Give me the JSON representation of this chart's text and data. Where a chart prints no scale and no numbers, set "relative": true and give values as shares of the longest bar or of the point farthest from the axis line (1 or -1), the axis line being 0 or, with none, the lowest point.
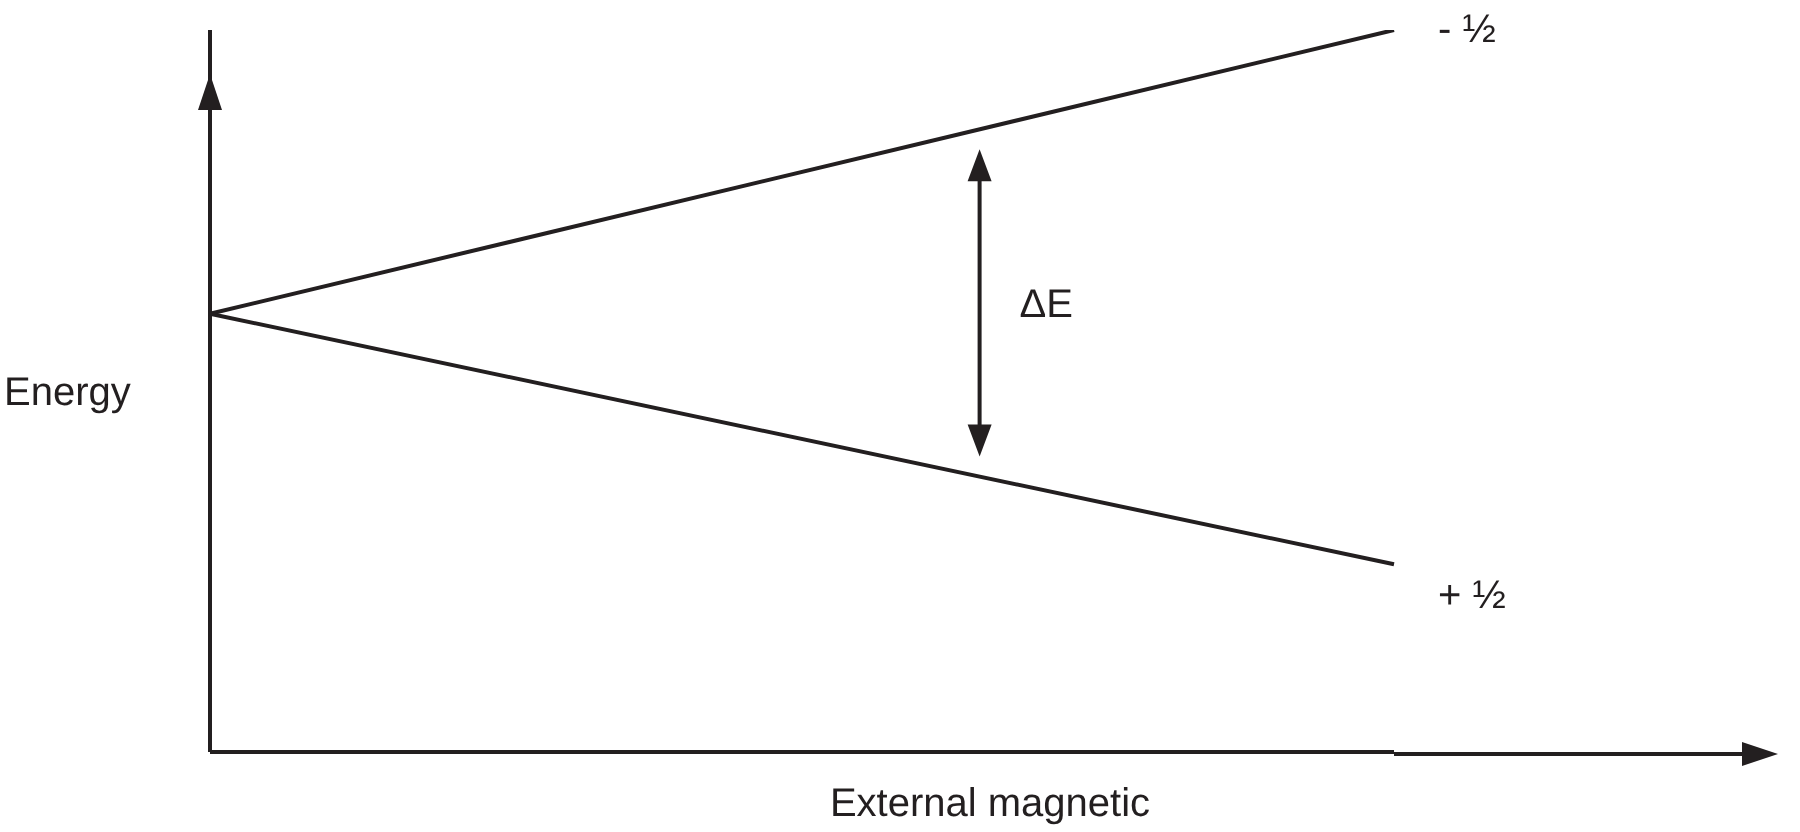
{
  "chart_data": {
    "type": "line",
    "relative": true,
    "xlabel": "External magnetic",
    "ylabel": "Energy",
    "categories": [
      null,
      null
    ],
    "marker": "none",
    "series": [
      {
        "name": "- ½",
        "color": "#231f20",
        "values": [
          0.607,
          1
        ]
      },
      {
        "name": "+ ½",
        "color": "#231f20",
        "values": [
          0.607,
          0.26
        ]
      }
    ],
    "annotations": [
      "ΔE"
    ]
  }
}
